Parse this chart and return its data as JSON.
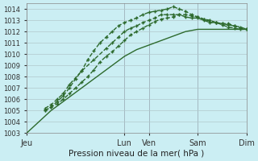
{
  "xlabel": "Pression niveau de la mer( hPa )",
  "background_color": "#cbeef3",
  "grid_color": "#b0c8cc",
  "line_color": "#2d6a2d",
  "ylim": [
    1003,
    1014.5
  ],
  "yticks": [
    1003,
    1004,
    1005,
    1006,
    1007,
    1008,
    1009,
    1010,
    1011,
    1012,
    1013,
    1014
  ],
  "day_labels": [
    "Jeu",
    "Lun",
    "Ven",
    "Sam",
    "Dim"
  ],
  "day_x": [
    0,
    8,
    10,
    14,
    18
  ],
  "xlim": [
    0,
    18
  ],
  "series": [
    {
      "x": [
        0,
        0.5,
        1.0,
        1.5,
        2.0,
        2.5,
        3.0,
        3.5,
        4.0,
        4.5,
        5.0,
        5.5,
        6.0,
        6.5,
        7.0,
        7.5,
        8.0,
        8.5,
        9.0,
        9.5,
        10.0,
        10.5,
        11.0,
        11.5,
        12.0,
        12.5,
        13.0,
        13.5,
        14.0,
        14.5,
        15.0,
        15.5,
        16.0,
        16.5,
        17.0,
        17.5,
        18.0
      ],
      "y": [
        1003.0,
        1003.5,
        1004.0,
        1004.5,
        1005.0,
        1005.4,
        1005.8,
        1006.2,
        1006.6,
        1007.0,
        1007.4,
        1007.8,
        1008.2,
        1008.6,
        1009.0,
        1009.4,
        1009.8,
        1010.1,
        1010.4,
        1010.6,
        1010.8,
        1011.0,
        1011.2,
        1011.4,
        1011.6,
        1011.8,
        1012.0,
        1012.1,
        1012.2,
        1012.2,
        1012.2,
        1012.2,
        1012.2,
        1012.2,
        1012.2,
        1012.2,
        1012.2
      ],
      "style": "-",
      "lw": 1.0,
      "marker": false
    },
    {
      "x": [
        1.5,
        2.0,
        2.5,
        3.0,
        3.5,
        4.0,
        4.5,
        5.0,
        5.5,
        6.0,
        6.5,
        7.0,
        7.5,
        8.0,
        8.5,
        9.0,
        9.5,
        10.0,
        10.5,
        11.0,
        11.5,
        12.0,
        12.5,
        13.0,
        13.5,
        14.0,
        14.5,
        15.0,
        15.5,
        16.0,
        16.5,
        17.0,
        17.5,
        18.0
      ],
      "y": [
        1005.0,
        1005.3,
        1005.6,
        1006.0,
        1006.5,
        1007.0,
        1007.5,
        1008.0,
        1008.6,
        1009.3,
        1009.8,
        1010.2,
        1010.7,
        1011.2,
        1011.7,
        1012.0,
        1012.3,
        1012.6,
        1012.9,
        1013.1,
        1013.2,
        1013.3,
        1013.5,
        1013.5,
        1013.4,
        1013.3,
        1013.1,
        1013.0,
        1012.8,
        1012.6,
        1012.4,
        1012.3,
        1012.2,
        1012.2
      ],
      "style": "--",
      "lw": 1.0,
      "marker": true
    },
    {
      "x": [
        1.5,
        2.0,
        2.5,
        3.0,
        3.5,
        4.0,
        4.5,
        5.0,
        5.5,
        6.0,
        6.5,
        7.0,
        7.5,
        8.0,
        8.5,
        9.0,
        9.5,
        10.0,
        10.5,
        11.0,
        11.5,
        12.0,
        12.5,
        13.0,
        13.5,
        14.0,
        14.5,
        15.0,
        15.5,
        16.0,
        16.5,
        17.0,
        17.5,
        18.0
      ],
      "y": [
        1005.0,
        1005.3,
        1005.8,
        1006.3,
        1007.0,
        1007.8,
        1008.5,
        1009.5,
        1010.3,
        1011.0,
        1011.5,
        1012.0,
        1012.5,
        1012.8,
        1013.0,
        1013.2,
        1013.5,
        1013.7,
        1013.8,
        1013.9,
        1014.0,
        1014.2,
        1014.0,
        1013.8,
        1013.5,
        1013.3,
        1013.1,
        1012.9,
        1012.8,
        1012.7,
        1012.6,
        1012.5,
        1012.4,
        1012.2
      ],
      "style": "--",
      "lw": 1.0,
      "marker": true
    },
    {
      "x": [
        1.5,
        2.0,
        2.5,
        3.0,
        3.5,
        4.5,
        5.5,
        6.5,
        7.0,
        7.5,
        8.0,
        8.5,
        9.0,
        9.5,
        10.0,
        10.5,
        11.0,
        11.5,
        12.0,
        12.5,
        13.0,
        13.5,
        14.0,
        14.5,
        15.0,
        15.5,
        16.0,
        16.5,
        17.0,
        17.5,
        18.0
      ],
      "y": [
        1005.2,
        1005.5,
        1006.0,
        1006.5,
        1007.3,
        1008.5,
        1009.5,
        1010.5,
        1011.0,
        1011.5,
        1012.0,
        1012.3,
        1012.5,
        1012.8,
        1013.0,
        1013.2,
        1013.5,
        1013.5,
        1013.5,
        1013.5,
        1013.3,
        1013.2,
        1013.2,
        1013.0,
        1012.8,
        1012.8,
        1012.7,
        1012.7,
        1012.5,
        1012.3,
        1012.2
      ],
      "style": "--",
      "lw": 1.0,
      "marker": true
    }
  ]
}
